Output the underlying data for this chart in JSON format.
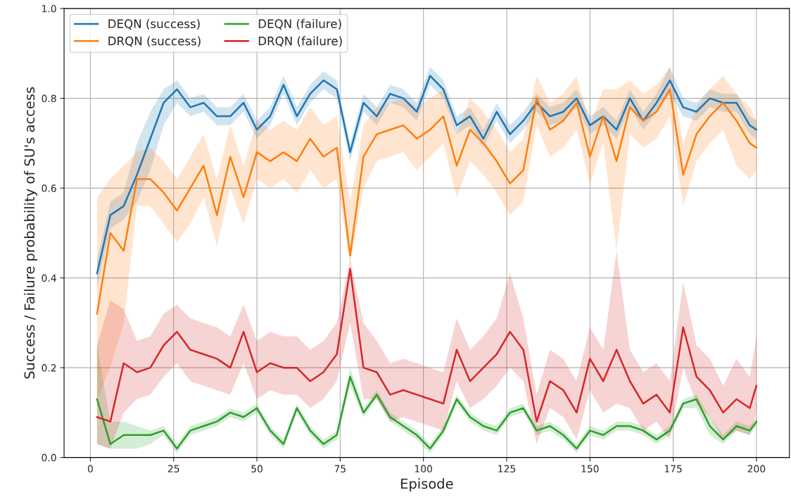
{
  "chart_data": {
    "type": "line",
    "xlabel": "Episode",
    "ylabel": "Success / Failure probability of SU's access",
    "x": [
      2,
      6,
      10,
      14,
      18,
      22,
      26,
      30,
      34,
      38,
      42,
      46,
      50,
      54,
      58,
      62,
      66,
      70,
      74,
      78,
      82,
      86,
      90,
      94,
      98,
      102,
      106,
      110,
      114,
      118,
      122,
      126,
      130,
      134,
      138,
      142,
      146,
      150,
      154,
      158,
      162,
      166,
      170,
      174,
      178,
      182,
      186,
      190,
      194,
      198,
      200
    ],
    "xlim": [
      -7.9,
      209.9
    ],
    "xticks": [
      0,
      25,
      50,
      75,
      100,
      125,
      150,
      175,
      200
    ],
    "ylim": [
      0,
      1
    ],
    "yticks": [
      {
        "value": 0,
        "label": "0.0"
      },
      0.2,
      0.4,
      0.6,
      0.8,
      {
        "value": 1,
        "label": "1.0"
      }
    ],
    "grid": true,
    "legend": "top left",
    "series": [
      {
        "name": "DEQN (success)",
        "color": "#1f77b4",
        "values": [
          0.41,
          0.54,
          0.56,
          0.63,
          0.71,
          0.79,
          0.82,
          0.78,
          0.79,
          0.76,
          0.76,
          0.79,
          0.73,
          0.76,
          0.83,
          0.76,
          0.81,
          0.84,
          0.82,
          0.68,
          0.79,
          0.76,
          0.81,
          0.8,
          0.77,
          0.85,
          0.82,
          0.74,
          0.76,
          0.71,
          0.77,
          0.72,
          0.75,
          0.79,
          0.76,
          0.77,
          0.8,
          0.74,
          0.76,
          0.73,
          0.8,
          0.75,
          0.79,
          0.84,
          0.78,
          0.77,
          0.8,
          0.79,
          0.79,
          0.74,
          0.73
        ],
        "lower": [
          0.38,
          0.51,
          0.53,
          0.57,
          0.64,
          0.74,
          0.79,
          0.76,
          0.77,
          0.74,
          0.74,
          0.77,
          0.71,
          0.74,
          0.81,
          0.74,
          0.79,
          0.82,
          0.8,
          0.66,
          0.77,
          0.74,
          0.79,
          0.78,
          0.75,
          0.83,
          0.8,
          0.72,
          0.74,
          0.69,
          0.75,
          0.7,
          0.73,
          0.77,
          0.74,
          0.75,
          0.78,
          0.72,
          0.74,
          0.71,
          0.78,
          0.73,
          0.77,
          0.81,
          0.76,
          0.75,
          0.78,
          0.77,
          0.77,
          0.72,
          0.71
        ],
        "upper": [
          0.44,
          0.57,
          0.59,
          0.7,
          0.77,
          0.82,
          0.84,
          0.8,
          0.81,
          0.78,
          0.78,
          0.81,
          0.75,
          0.78,
          0.85,
          0.78,
          0.83,
          0.86,
          0.84,
          0.7,
          0.81,
          0.78,
          0.83,
          0.82,
          0.79,
          0.87,
          0.84,
          0.76,
          0.78,
          0.73,
          0.79,
          0.74,
          0.77,
          0.81,
          0.78,
          0.79,
          0.82,
          0.76,
          0.78,
          0.75,
          0.82,
          0.77,
          0.81,
          0.87,
          0.8,
          0.79,
          0.82,
          0.81,
          0.81,
          0.76,
          0.75
        ]
      },
      {
        "name": "DRQN (success)",
        "color": "#ff7f0e",
        "values": [
          0.32,
          0.5,
          0.46,
          0.62,
          0.62,
          0.59,
          0.55,
          0.6,
          0.65,
          0.54,
          0.67,
          0.58,
          0.68,
          0.66,
          0.68,
          0.66,
          0.71,
          0.67,
          0.69,
          0.45,
          0.67,
          0.72,
          0.73,
          0.74,
          0.71,
          0.73,
          0.76,
          0.65,
          0.73,
          0.7,
          0.66,
          0.61,
          0.64,
          0.8,
          0.73,
          0.75,
          0.79,
          0.67,
          0.76,
          0.66,
          0.78,
          0.75,
          0.77,
          0.82,
          0.63,
          0.72,
          0.76,
          0.79,
          0.75,
          0.7,
          0.69
        ],
        "lower": [
          0.13,
          0.2,
          0.3,
          0.56,
          0.56,
          0.52,
          0.48,
          0.52,
          0.58,
          0.47,
          0.6,
          0.52,
          0.62,
          0.6,
          0.62,
          0.59,
          0.64,
          0.6,
          0.62,
          0.43,
          0.6,
          0.66,
          0.67,
          0.68,
          0.64,
          0.67,
          0.7,
          0.58,
          0.66,
          0.63,
          0.59,
          0.54,
          0.57,
          0.74,
          0.67,
          0.69,
          0.73,
          0.61,
          0.7,
          0.46,
          0.72,
          0.69,
          0.71,
          0.76,
          0.56,
          0.66,
          0.7,
          0.73,
          0.65,
          0.62,
          0.64
        ],
        "upper": [
          0.58,
          0.62,
          0.65,
          0.68,
          0.69,
          0.66,
          0.62,
          0.67,
          0.72,
          0.62,
          0.74,
          0.65,
          0.75,
          0.73,
          0.75,
          0.73,
          0.78,
          0.74,
          0.76,
          0.57,
          0.74,
          0.78,
          0.79,
          0.8,
          0.78,
          0.8,
          0.82,
          0.72,
          0.8,
          0.77,
          0.73,
          0.68,
          0.71,
          0.85,
          0.79,
          0.81,
          0.85,
          0.74,
          0.82,
          0.82,
          0.84,
          0.81,
          0.83,
          0.87,
          0.7,
          0.78,
          0.82,
          0.85,
          0.81,
          0.78,
          0.75
        ]
      },
      {
        "name": "DEQN (failure)",
        "color": "#2ca02c",
        "values": [
          0.13,
          0.03,
          0.05,
          0.05,
          0.05,
          0.06,
          0.02,
          0.06,
          0.07,
          0.08,
          0.1,
          0.09,
          0.11,
          0.06,
          0.03,
          0.11,
          0.06,
          0.03,
          0.05,
          0.18,
          0.1,
          0.14,
          0.09,
          0.07,
          0.05,
          0.02,
          0.06,
          0.13,
          0.09,
          0.07,
          0.06,
          0.1,
          0.11,
          0.06,
          0.07,
          0.05,
          0.02,
          0.06,
          0.05,
          0.07,
          0.07,
          0.06,
          0.04,
          0.06,
          0.12,
          0.13,
          0.07,
          0.04,
          0.07,
          0.06,
          0.08
        ],
        "lower": [
          0.03,
          0.02,
          0.02,
          0.02,
          0.03,
          0.05,
          0.01,
          0.05,
          0.06,
          0.07,
          0.09,
          0.08,
          0.1,
          0.05,
          0.02,
          0.1,
          0.05,
          0.02,
          0.04,
          0.16,
          0.09,
          0.13,
          0.08,
          0.06,
          0.04,
          0.01,
          0.05,
          0.12,
          0.08,
          0.06,
          0.05,
          0.09,
          0.1,
          0.05,
          0.06,
          0.04,
          0.01,
          0.05,
          0.04,
          0.06,
          0.06,
          0.05,
          0.03,
          0.05,
          0.11,
          0.11,
          0.05,
          0.03,
          0.06,
          0.05,
          0.07
        ],
        "upper": [
          0.25,
          0.08,
          0.08,
          0.07,
          0.06,
          0.07,
          0.03,
          0.07,
          0.08,
          0.09,
          0.11,
          0.1,
          0.12,
          0.07,
          0.04,
          0.12,
          0.07,
          0.04,
          0.06,
          0.2,
          0.11,
          0.15,
          0.1,
          0.08,
          0.06,
          0.03,
          0.07,
          0.14,
          0.1,
          0.08,
          0.07,
          0.11,
          0.12,
          0.07,
          0.08,
          0.06,
          0.03,
          0.07,
          0.06,
          0.08,
          0.08,
          0.07,
          0.05,
          0.07,
          0.13,
          0.14,
          0.09,
          0.05,
          0.08,
          0.07,
          0.09
        ]
      },
      {
        "name": "DRQN (failure)",
        "color": "#d62728",
        "values": [
          0.09,
          0.08,
          0.21,
          0.19,
          0.2,
          0.25,
          0.28,
          0.24,
          0.23,
          0.22,
          0.2,
          0.28,
          0.19,
          0.21,
          0.2,
          0.2,
          0.17,
          0.19,
          0.23,
          0.42,
          0.2,
          0.19,
          0.14,
          0.15,
          0.14,
          0.13,
          0.12,
          0.24,
          0.17,
          0.2,
          0.23,
          0.28,
          0.24,
          0.08,
          0.17,
          0.15,
          0.1,
          0.22,
          0.17,
          0.24,
          0.17,
          0.12,
          0.14,
          0.1,
          0.29,
          0.18,
          0.15,
          0.1,
          0.13,
          0.11,
          0.16
        ],
        "lower": [
          0.03,
          0.02,
          0.1,
          0.13,
          0.14,
          0.18,
          0.21,
          0.17,
          0.16,
          0.15,
          0.14,
          0.21,
          0.13,
          0.15,
          0.14,
          0.14,
          0.11,
          0.13,
          0.17,
          0.3,
          0.13,
          0.13,
          0.08,
          0.09,
          0.08,
          0.07,
          0.06,
          0.17,
          0.11,
          0.13,
          0.16,
          0.2,
          0.17,
          0.03,
          0.11,
          0.09,
          0.04,
          0.15,
          0.1,
          0.12,
          0.11,
          0.06,
          0.08,
          0.04,
          0.2,
          0.12,
          0.09,
          0.04,
          0.06,
          0.05,
          0.1
        ],
        "upper": [
          0.25,
          0.35,
          0.33,
          0.26,
          0.27,
          0.32,
          0.34,
          0.31,
          0.3,
          0.29,
          0.27,
          0.34,
          0.26,
          0.28,
          0.27,
          0.27,
          0.24,
          0.26,
          0.3,
          0.44,
          0.3,
          0.26,
          0.21,
          0.22,
          0.21,
          0.2,
          0.19,
          0.31,
          0.24,
          0.27,
          0.31,
          0.41,
          0.31,
          0.14,
          0.24,
          0.22,
          0.17,
          0.29,
          0.24,
          0.46,
          0.24,
          0.19,
          0.21,
          0.17,
          0.39,
          0.25,
          0.22,
          0.16,
          0.22,
          0.18,
          0.27
        ]
      }
    ]
  }
}
